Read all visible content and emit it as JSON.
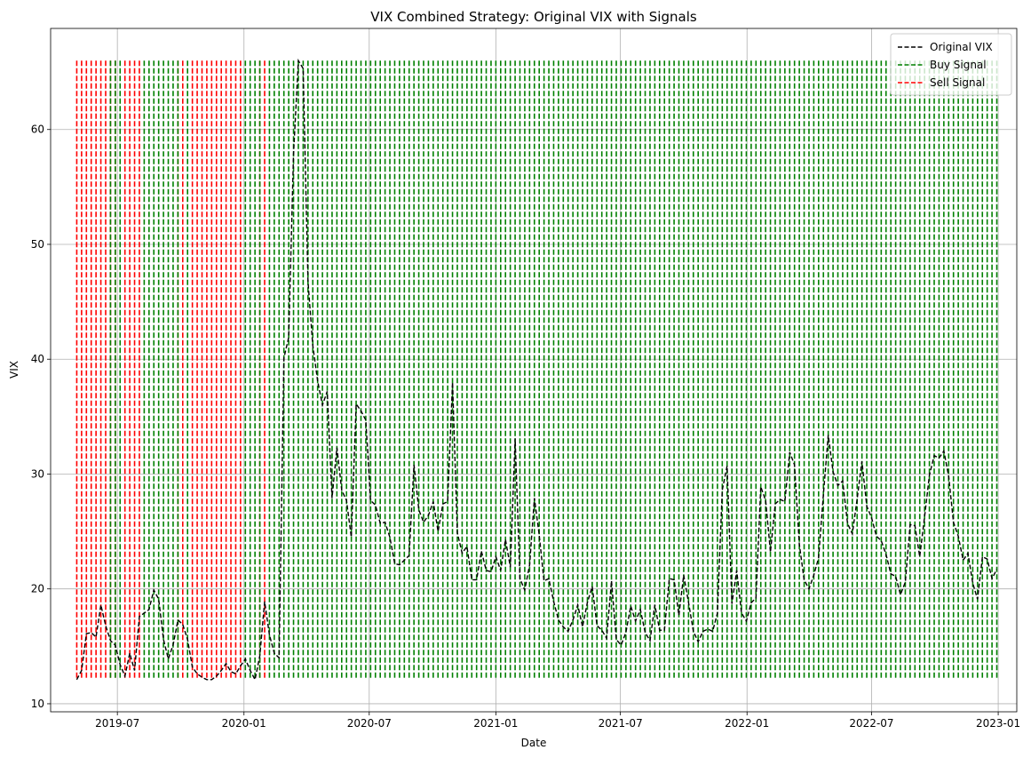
{
  "chart_data": {
    "type": "line",
    "title": "VIX Combined Strategy: Original VIX with Signals",
    "xlabel": "Date",
    "ylabel": "VIX",
    "grid": true,
    "legend_position": "top-right",
    "xlim": [
      "2019-03-26",
      "2023-01-28"
    ],
    "ylim": [
      9.3,
      68.8
    ],
    "x_ticks": [
      "2019-07",
      "2020-01",
      "2020-07",
      "2021-01",
      "2021-07",
      "2022-01",
      "2022-07",
      "2023-01"
    ],
    "y_ticks": [
      10,
      20,
      30,
      40,
      50,
      60
    ],
    "signal_range": [
      12.1,
      66.0
    ],
    "signal_interval_days": 7,
    "sell_spans": [
      [
        "2019-05-03",
        "2019-06-14"
      ],
      [
        "2019-06-21",
        "2019-06-28"
      ],
      [
        "2019-07-12",
        "2019-08-02"
      ],
      [
        "2019-09-27",
        "2019-10-04"
      ],
      [
        "2019-10-18",
        "2019-12-27"
      ],
      [
        "2020-01-24",
        "2020-01-31"
      ]
    ],
    "buy_spans": [
      [
        "2019-06-21",
        "2019-06-28"
      ],
      [
        "2019-07-05",
        "2019-07-05"
      ],
      [
        "2019-08-09",
        "2019-09-27"
      ],
      [
        "2019-10-11",
        "2019-10-11"
      ],
      [
        "2020-01-03",
        "2020-01-24"
      ],
      [
        "2020-02-07",
        "2022-12-30"
      ]
    ],
    "series": [
      {
        "name": "Original VIX",
        "color": "#000000",
        "style": "dashed",
        "points": [
          [
            "2019-05-03",
            12.1
          ],
          [
            "2019-05-10",
            12.9
          ],
          [
            "2019-05-17",
            16.1
          ],
          [
            "2019-05-24",
            16.2
          ],
          [
            "2019-05-31",
            15.8
          ],
          [
            "2019-06-07",
            18.6
          ],
          [
            "2019-06-14",
            16.8
          ],
          [
            "2019-06-21",
            15.5
          ],
          [
            "2019-06-28",
            15.1
          ],
          [
            "2019-07-05",
            13.4
          ],
          [
            "2019-07-12",
            12.4
          ],
          [
            "2019-07-19",
            14.4
          ],
          [
            "2019-07-26",
            12.9
          ],
          [
            "2019-08-02",
            17.6
          ],
          [
            "2019-08-09",
            17.9
          ],
          [
            "2019-08-16",
            18.2
          ],
          [
            "2019-08-23",
            19.9
          ],
          [
            "2019-08-30",
            19.1
          ],
          [
            "2019-09-06",
            15.6
          ],
          [
            "2019-09-13",
            13.9
          ],
          [
            "2019-09-20",
            15.1
          ],
          [
            "2019-09-27",
            17.3
          ],
          [
            "2019-10-04",
            16.9
          ],
          [
            "2019-10-11",
            15.6
          ],
          [
            "2019-10-18",
            13.2
          ],
          [
            "2019-10-25",
            12.6
          ],
          [
            "2019-11-01",
            12.3
          ],
          [
            "2019-11-08",
            12.1
          ],
          [
            "2019-11-15",
            12.1
          ],
          [
            "2019-11-22",
            12.4
          ],
          [
            "2019-11-29",
            12.9
          ],
          [
            "2019-12-06",
            13.5
          ],
          [
            "2019-12-13",
            12.8
          ],
          [
            "2019-12-20",
            12.6
          ],
          [
            "2019-12-27",
            13.3
          ],
          [
            "2020-01-03",
            13.9
          ],
          [
            "2020-01-10",
            12.9
          ],
          [
            "2020-01-17",
            12.1
          ],
          [
            "2020-01-24",
            14.2
          ],
          [
            "2020-01-31",
            18.9
          ],
          [
            "2020-02-07",
            16.0
          ],
          [
            "2020-02-14",
            14.4
          ],
          [
            "2020-02-21",
            14.0
          ],
          [
            "2020-02-28",
            40.1
          ],
          [
            "2020-03-06",
            41.9
          ],
          [
            "2020-03-13",
            57.8
          ],
          [
            "2020-03-20",
            66.0
          ],
          [
            "2020-03-27",
            65.3
          ],
          [
            "2020-04-03",
            46.8
          ],
          [
            "2020-04-10",
            41.2
          ],
          [
            "2020-04-17",
            38.1
          ],
          [
            "2020-04-24",
            36.0
          ],
          [
            "2020-05-01",
            37.2
          ],
          [
            "2020-05-08",
            27.9
          ],
          [
            "2020-05-15",
            32.3
          ],
          [
            "2020-05-22",
            28.6
          ],
          [
            "2020-05-29",
            27.7
          ],
          [
            "2020-06-05",
            24.5
          ],
          [
            "2020-06-12",
            36.1
          ],
          [
            "2020-06-19",
            35.5
          ],
          [
            "2020-06-26",
            34.7
          ],
          [
            "2020-07-03",
            27.7
          ],
          [
            "2020-07-10",
            27.3
          ],
          [
            "2020-07-17",
            25.7
          ],
          [
            "2020-07-24",
            25.8
          ],
          [
            "2020-07-31",
            24.5
          ],
          [
            "2020-08-07",
            22.2
          ],
          [
            "2020-08-14",
            22.1
          ],
          [
            "2020-08-21",
            22.5
          ],
          [
            "2020-08-28",
            22.9
          ],
          [
            "2020-09-04",
            30.8
          ],
          [
            "2020-09-11",
            26.9
          ],
          [
            "2020-09-18",
            25.8
          ],
          [
            "2020-09-25",
            26.4
          ],
          [
            "2020-10-02",
            27.6
          ],
          [
            "2020-10-09",
            25.0
          ],
          [
            "2020-10-16",
            27.4
          ],
          [
            "2020-10-23",
            27.6
          ],
          [
            "2020-10-30",
            38.0
          ],
          [
            "2020-11-06",
            24.9
          ],
          [
            "2020-11-13",
            23.1
          ],
          [
            "2020-11-20",
            23.7
          ],
          [
            "2020-11-27",
            20.8
          ],
          [
            "2020-12-04",
            20.8
          ],
          [
            "2020-12-11",
            23.3
          ],
          [
            "2020-12-18",
            21.6
          ],
          [
            "2020-12-25",
            21.5
          ],
          [
            "2021-01-01",
            22.8
          ],
          [
            "2021-01-08",
            21.6
          ],
          [
            "2021-01-15",
            24.3
          ],
          [
            "2021-01-22",
            21.9
          ],
          [
            "2021-01-29",
            33.1
          ],
          [
            "2021-02-05",
            20.9
          ],
          [
            "2021-02-12",
            19.9
          ],
          [
            "2021-02-19",
            22.1
          ],
          [
            "2021-02-26",
            27.9
          ],
          [
            "2021-03-05",
            24.7
          ],
          [
            "2021-03-12",
            20.7
          ],
          [
            "2021-03-19",
            20.9
          ],
          [
            "2021-03-26",
            18.9
          ],
          [
            "2021-04-02",
            17.3
          ],
          [
            "2021-04-09",
            16.7
          ],
          [
            "2021-04-16",
            16.3
          ],
          [
            "2021-04-23",
            17.3
          ],
          [
            "2021-04-30",
            18.6
          ],
          [
            "2021-05-07",
            16.7
          ],
          [
            "2021-05-14",
            18.8
          ],
          [
            "2021-05-21",
            20.2
          ],
          [
            "2021-05-28",
            16.8
          ],
          [
            "2021-06-04",
            16.4
          ],
          [
            "2021-06-11",
            15.7
          ],
          [
            "2021-06-18",
            20.7
          ],
          [
            "2021-06-25",
            15.6
          ],
          [
            "2021-07-02",
            15.1
          ],
          [
            "2021-07-09",
            16.2
          ],
          [
            "2021-07-16",
            18.5
          ],
          [
            "2021-07-23",
            17.2
          ],
          [
            "2021-07-30",
            18.2
          ],
          [
            "2021-08-06",
            16.2
          ],
          [
            "2021-08-13",
            15.5
          ],
          [
            "2021-08-20",
            18.6
          ],
          [
            "2021-08-27",
            16.4
          ],
          [
            "2021-09-03",
            16.4
          ],
          [
            "2021-09-10",
            20.9
          ],
          [
            "2021-09-17",
            20.8
          ],
          [
            "2021-09-24",
            17.7
          ],
          [
            "2021-10-01",
            21.2
          ],
          [
            "2021-10-08",
            18.8
          ],
          [
            "2021-10-15",
            16.3
          ],
          [
            "2021-10-22",
            15.4
          ],
          [
            "2021-10-29",
            16.3
          ],
          [
            "2021-11-05",
            16.5
          ],
          [
            "2021-11-12",
            16.3
          ],
          [
            "2021-11-19",
            17.9
          ],
          [
            "2021-11-26",
            28.6
          ],
          [
            "2021-12-03",
            30.7
          ],
          [
            "2021-12-10",
            18.7
          ],
          [
            "2021-12-17",
            21.6
          ],
          [
            "2021-12-24",
            17.9
          ],
          [
            "2021-12-31",
            17.2
          ],
          [
            "2022-01-07",
            18.8
          ],
          [
            "2022-01-14",
            19.2
          ],
          [
            "2022-01-21",
            28.9
          ],
          [
            "2022-01-28",
            27.7
          ],
          [
            "2022-02-04",
            23.2
          ],
          [
            "2022-02-11",
            27.4
          ],
          [
            "2022-02-18",
            27.8
          ],
          [
            "2022-02-25",
            27.6
          ],
          [
            "2022-03-04",
            31.9
          ],
          [
            "2022-03-11",
            30.8
          ],
          [
            "2022-03-18",
            23.9
          ],
          [
            "2022-03-25",
            20.8
          ],
          [
            "2022-04-01",
            20.0
          ],
          [
            "2022-04-08",
            21.2
          ],
          [
            "2022-04-15",
            22.7
          ],
          [
            "2022-04-22",
            28.2
          ],
          [
            "2022-04-29",
            33.4
          ],
          [
            "2022-05-06",
            30.2
          ],
          [
            "2022-05-13",
            29.0
          ],
          [
            "2022-05-20",
            29.4
          ],
          [
            "2022-05-27",
            25.7
          ],
          [
            "2022-06-03",
            24.8
          ],
          [
            "2022-06-10",
            27.8
          ],
          [
            "2022-06-17",
            31.1
          ],
          [
            "2022-06-24",
            27.2
          ],
          [
            "2022-07-01",
            26.2
          ],
          [
            "2022-07-08",
            24.6
          ],
          [
            "2022-07-15",
            24.2
          ],
          [
            "2022-07-22",
            23.0
          ],
          [
            "2022-07-29",
            21.3
          ],
          [
            "2022-08-05",
            21.1
          ],
          [
            "2022-08-12",
            19.5
          ],
          [
            "2022-08-19",
            20.6
          ],
          [
            "2022-08-26",
            25.6
          ],
          [
            "2022-09-02",
            25.5
          ],
          [
            "2022-09-09",
            22.8
          ],
          [
            "2022-09-16",
            26.3
          ],
          [
            "2022-09-23",
            29.9
          ],
          [
            "2022-09-30",
            31.6
          ],
          [
            "2022-10-07",
            31.4
          ],
          [
            "2022-10-14",
            32.0
          ],
          [
            "2022-10-21",
            29.8
          ],
          [
            "2022-10-28",
            25.8
          ],
          [
            "2022-11-04",
            24.6
          ],
          [
            "2022-11-11",
            22.5
          ],
          [
            "2022-11-18",
            23.1
          ],
          [
            "2022-11-25",
            20.5
          ],
          [
            "2022-12-02",
            19.1
          ],
          [
            "2022-12-09",
            22.8
          ],
          [
            "2022-12-16",
            22.6
          ],
          [
            "2022-12-23",
            20.9
          ],
          [
            "2022-12-30",
            21.7
          ]
        ]
      },
      {
        "name": "Buy Signal",
        "color": "#008000",
        "style": "dashed"
      },
      {
        "name": "Sell Signal",
        "color": "#ff0000",
        "style": "dashed"
      }
    ]
  }
}
